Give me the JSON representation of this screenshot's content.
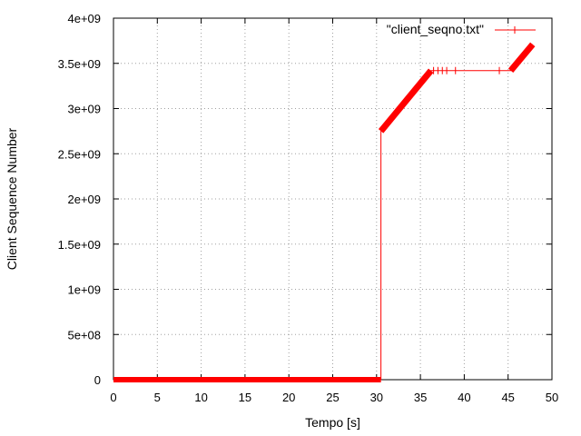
{
  "chart_data": {
    "type": "line",
    "title": "",
    "xlabel": "Tempo [s]",
    "ylabel": "Client Sequence Number",
    "xlim": [
      0,
      50
    ],
    "ylim": [
      0,
      4000000000
    ],
    "xticks": [
      0,
      5,
      10,
      15,
      20,
      25,
      30,
      35,
      40,
      45,
      50
    ],
    "xtick_labels": [
      "0",
      "5",
      "10",
      "15",
      "20",
      "25",
      "30",
      "35",
      "40",
      "45",
      "50"
    ],
    "yticks": [
      0,
      500000000,
      1000000000,
      1500000000,
      2000000000,
      2500000000,
      3000000000,
      3500000000,
      4000000000
    ],
    "ytick_labels": [
      "0",
      "5e+08",
      "1e+09",
      "1.5e+09",
      "2e+09",
      "2.5e+09",
      "3e+09",
      "3.5e+09",
      "4e+09"
    ],
    "grid": true,
    "legend_position": "top-right",
    "colors": {
      "series": "#ff0000",
      "grid": "#a0a0a0",
      "axes": "#000000"
    },
    "series": [
      {
        "name": "\"client_seqno.txt\"",
        "x": [
          0,
          30.5,
          30.5,
          36.2,
          45.3,
          47.8
        ],
        "y": [
          0,
          0,
          2750000000,
          3420000000,
          3420000000,
          3710000000
        ],
        "isolated_points_x": [
          36.5,
          37.0,
          37.5,
          38.0,
          39.0,
          44.0
        ]
      }
    ]
  }
}
